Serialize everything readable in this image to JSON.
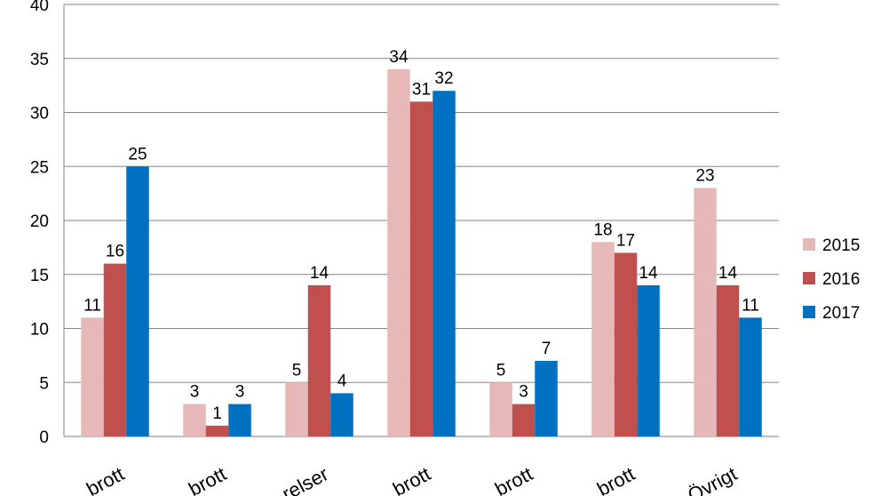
{
  "chart_data": {
    "type": "bar",
    "categories": [
      "…brott",
      "…brott",
      "…relser",
      "…brott",
      "…brott",
      "…brott",
      "Övrigt"
    ],
    "series": [
      {
        "name": "2015",
        "color": "#e6b9b8",
        "values": [
          11,
          3,
          5,
          34,
          5,
          18,
          23
        ]
      },
      {
        "name": "2016",
        "color": "#c0504d",
        "values": [
          16,
          1,
          14,
          31,
          3,
          17,
          14
        ]
      },
      {
        "name": "2017",
        "color": "#0070c0",
        "values": [
          25,
          3,
          4,
          32,
          7,
          14,
          11
        ]
      }
    ],
    "ylim": [
      0,
      40
    ],
    "yticks": [
      0,
      5,
      10,
      15,
      20,
      25,
      30,
      35,
      40
    ],
    "grid": true,
    "legend": "right",
    "data_labels": true,
    "title": "",
    "xlabel": "",
    "ylabel": ""
  }
}
